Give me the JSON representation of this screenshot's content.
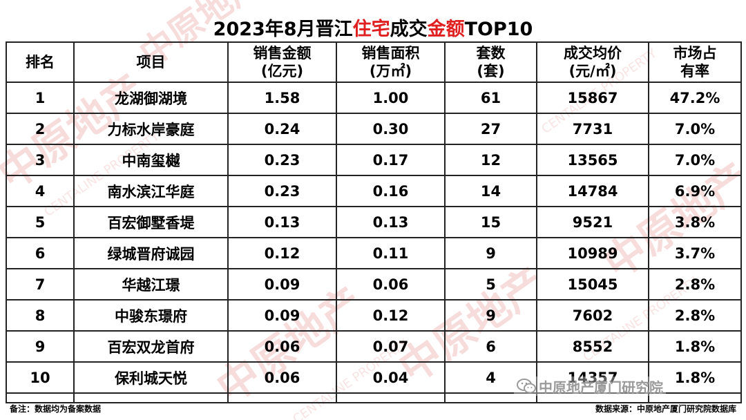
{
  "title": {
    "prefix": "2023年8月晋江",
    "highlight1": "住宅",
    "middle": "成交",
    "highlight2": "金额",
    "suffix": "TOP10",
    "highlight_color": "#e02020"
  },
  "headers": {
    "rank": "排名",
    "project": "项目",
    "amount_line1": "销售金额",
    "amount_line2": "(亿元)",
    "area_line1": "销售面积",
    "area_line2": "(万㎡)",
    "units_line1": "套数",
    "units_line2": "(套)",
    "price_line1": "成交均价",
    "price_line2": "(元/㎡)",
    "share_line1": "市场占",
    "share_line2": "有率"
  },
  "rows": [
    {
      "rank": "1",
      "project": "龙湖御湖境",
      "amount": "1.58",
      "area": "1.00",
      "units": "61",
      "price": "15867",
      "share": "47.2%"
    },
    {
      "rank": "2",
      "project": "力标水岸豪庭",
      "amount": "0.24",
      "area": "0.30",
      "units": "27",
      "price": "7731",
      "share": "7.0%"
    },
    {
      "rank": "3",
      "project": "中南玺樾",
      "amount": "0.23",
      "area": "0.17",
      "units": "12",
      "price": "13565",
      "share": "7.0%"
    },
    {
      "rank": "4",
      "project": "南水滨江华庭",
      "amount": "0.23",
      "area": "0.16",
      "units": "14",
      "price": "14784",
      "share": "6.9%"
    },
    {
      "rank": "5",
      "project": "百宏御墅香堤",
      "amount": "0.13",
      "area": "0.13",
      "units": "15",
      "price": "9521",
      "share": "3.8%"
    },
    {
      "rank": "6",
      "project": "绿城晋府诚园",
      "amount": "0.12",
      "area": "0.11",
      "units": "9",
      "price": "10989",
      "share": "3.7%"
    },
    {
      "rank": "7",
      "project": "华越江璟",
      "amount": "0.09",
      "area": "0.06",
      "units": "5",
      "price": "15045",
      "share": "2.8%"
    },
    {
      "rank": "8",
      "project": "中骏东璟府",
      "amount": "0.09",
      "area": "0.12",
      "units": "9",
      "price": "7602",
      "share": "2.8%"
    },
    {
      "rank": "9",
      "project": "百宏双龙首府",
      "amount": "0.06",
      "area": "0.07",
      "units": "6",
      "price": "8552",
      "share": "1.8%"
    },
    {
      "rank": "10",
      "project": "保利城天悦",
      "amount": "0.06",
      "area": "0.04",
      "units": "4",
      "price": "14357",
      "share": "1.8%"
    }
  ],
  "footer": {
    "note": "备注：数据均为备案数据",
    "source": "数据来源：中原地产厦门研究院数据库"
  },
  "brand": {
    "account_name": "中原地产厦门研究院",
    "icon": "wechat-icon"
  },
  "watermark": {
    "text_cn": "中原地产",
    "text_en": "CENTALINE PROPERTY",
    "color": "#f6d6d6"
  }
}
